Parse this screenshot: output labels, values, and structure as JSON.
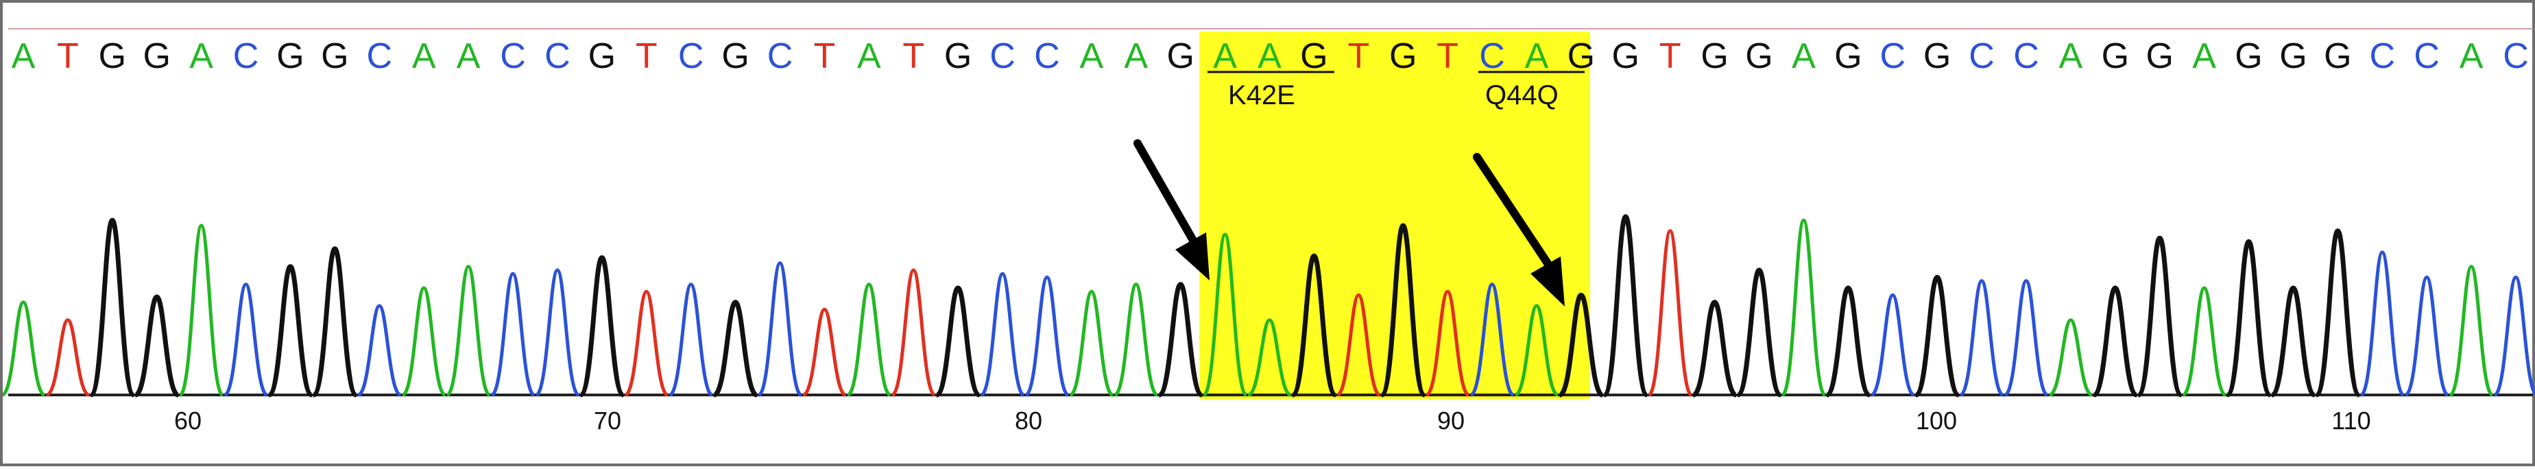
{
  "chromatogram": {
    "sequence": [
      "A",
      "T",
      "G",
      "G",
      "A",
      "C",
      "G",
      "G",
      "C",
      "A",
      "A",
      "C",
      "C",
      "G",
      "T",
      "C",
      "G",
      "C",
      "T",
      "A",
      "T",
      "G",
      "C",
      "C",
      "A",
      "A",
      "G",
      "A",
      "A",
      "G",
      "T",
      "G",
      "T",
      "C",
      "A",
      "G",
      "G",
      "T",
      "G",
      "G",
      "A",
      "G",
      "C",
      "G",
      "C",
      "C",
      "A",
      "G",
      "G",
      "A",
      "G",
      "G",
      "G",
      "C",
      "C",
      "A",
      "C"
    ],
    "base_colors": {
      "A": "#22b822",
      "C": "#2b52d8",
      "G": "#111111",
      "T": "#e03020"
    },
    "highlight_color": "#ffff22",
    "arrow_color": "#000000",
    "mutations": [
      {
        "label": "K42E",
        "codon": "AAG"
      },
      {
        "label": "Q44Q",
        "codon": "CAG"
      }
    ],
    "axis_ticks": [
      "60",
      "70",
      "80",
      "90",
      "100",
      "110"
    ]
  }
}
